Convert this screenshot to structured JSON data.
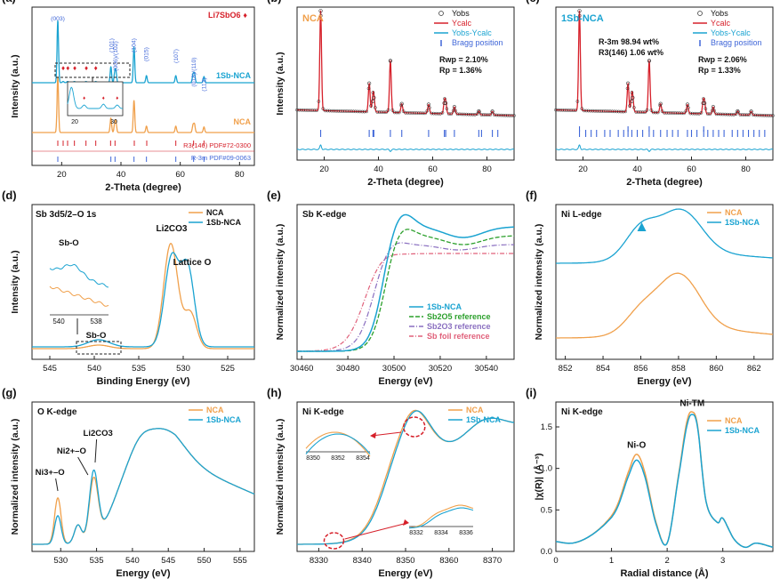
{
  "colors": {
    "nca": "#f0a04b",
    "sb": "#1aa3d1",
    "red": "#d6202a",
    "blue": "#3f66d8",
    "green": "#2ca02c",
    "purple": "#8a6fc0",
    "pink": "#e0607a",
    "gray": "#9aa3b5"
  },
  "panels": [
    {
      "id": "a",
      "letter": "(a)",
      "xlabel": "2-Theta (degree)",
      "ylabel": "Intensity (a.u.)",
      "xrange": [
        10,
        85
      ],
      "xticks": [
        20,
        40,
        60,
        80
      ],
      "legend": "Li7SbO6",
      "labels": {
        "sb_curve": "1Sb-NCA",
        "nca_curve": "NCA",
        "ref1": "R3(146) PDF#72-0300",
        "ref2": "R-3m PDF#09-0063"
      },
      "hkl": [
        "(003)",
        "(101)",
        "(006)/(102)",
        "(104)",
        "(015)",
        "(107)",
        "(018)/(110)",
        "(113)"
      ],
      "inset": {
        "xticks": [
          "20",
          "30"
        ]
      }
    },
    {
      "id": "b",
      "letter": "(b)",
      "tag": "NCA",
      "xlabel": "2-Theta (degree)",
      "ylabel": "Intensity (a.u.)",
      "xrange": [
        10,
        90
      ],
      "xticks": [
        20,
        40,
        60,
        80
      ],
      "legend": [
        "Yobs",
        "Ycalc",
        "Yobs-Ycalc",
        "Bragg position"
      ],
      "stats": [
        "Rwp = 2.10%",
        "Rp = 1.36%"
      ]
    },
    {
      "id": "c",
      "letter": "(c)",
      "tag": "1Sb-NCA",
      "xlabel": "2-Theta (degree)",
      "ylabel": "",
      "xrange": [
        10,
        90
      ],
      "xticks": [
        20,
        40,
        60,
        80
      ],
      "legend": [
        "Yobs",
        "Ycalc",
        "Yobs-Ycalc",
        "Bragg position"
      ],
      "phases": [
        "R-3m   98.94 wt%",
        "R3(146) 1.06 wt%"
      ],
      "stats": [
        "Rwp = 2.06%",
        "Rp = 1.33%"
      ]
    },
    {
      "id": "d",
      "letter": "(d)",
      "title": "Sb 3d5/2–O 1s",
      "xlabel": "Binding Energy (eV)",
      "ylabel": "Intensity (a.u.)",
      "xticks": [
        "545",
        "540",
        "535",
        "530",
        "525"
      ],
      "legend": [
        "NCA",
        "1Sb-NCA"
      ],
      "labels": [
        "Li2CO3",
        "Lattice O",
        "Sb-O",
        "Sb-O"
      ],
      "inset": {
        "xticks": [
          "540",
          "538"
        ]
      }
    },
    {
      "id": "e",
      "letter": "(e)",
      "title": "Sb K-edge",
      "xlabel": "Energy (eV)",
      "ylabel": "Normalized intensity (a.u.)",
      "xticks": [
        "30460",
        "30480",
        "30500",
        "30520",
        "30540"
      ],
      "legend": [
        "1Sb-NCA",
        "Sb2O5 reference",
        "Sb2O3 reference",
        "Sb foil reference"
      ]
    },
    {
      "id": "f",
      "letter": "(f)",
      "title": "Ni L-edge",
      "xlabel": "Energy (eV)",
      "ylabel": "Normalized intensity (a.u.)",
      "xticks": [
        "852",
        "854",
        "856",
        "858",
        "860",
        "862"
      ],
      "legend": [
        "NCA",
        "1Sb-NCA"
      ]
    },
    {
      "id": "g",
      "letter": "(g)",
      "title": "O K-edge",
      "xlabel": "Energy (eV)",
      "ylabel": "Normalized intensity (a.u.)",
      "xticks": [
        "530",
        "535",
        "540",
        "545",
        "550",
        "555"
      ],
      "legend": [
        "NCA",
        "1Sb-NCA"
      ],
      "labels": [
        "Ni3+–O",
        "Ni2+–O",
        "Li2CO3"
      ]
    },
    {
      "id": "h",
      "letter": "(h)",
      "title": "Ni K-edge",
      "xlabel": "Energy (eV)",
      "ylabel": "Normalized intensity (a.u.)",
      "xticks": [
        "8330",
        "8340",
        "8350",
        "8360",
        "8370"
      ],
      "legend": [
        "NCA",
        "1Sb-NCA"
      ],
      "inset_top": [
        "8350",
        "8352",
        "8354"
      ],
      "inset_bottom": [
        "8332",
        "8334",
        "8336"
      ]
    },
    {
      "id": "i",
      "letter": "(i)",
      "title": "Ni K-edge",
      "xlabel": "Radial distance (Å)",
      "ylabel": "|χ(R)| (Å⁻³)",
      "xrange": [
        0,
        3.9
      ],
      "yrange": [
        0,
        1.8
      ],
      "xticks": [
        0,
        1,
        2,
        3
      ],
      "yticks": [
        0,
        0.5,
        1.0,
        1.5
      ],
      "legend": [
        "NCA",
        "1Sb-NCA"
      ],
      "labels": [
        "Ni-O",
        "Ni-TM"
      ]
    }
  ],
  "chart_data": [
    {
      "panel": "a",
      "type": "line",
      "title": "",
      "xlabel": "2-Theta (degree)",
      "ylabel": "Intensity (a.u.)",
      "series": [
        {
          "name": "1Sb-NCA",
          "peaks_2theta": [
            18.7,
            36.6,
            37.9,
            38.3,
            44.4,
            48.6,
            58.5,
            64.3,
            64.8,
            68.0
          ]
        },
        {
          "name": "NCA",
          "peaks_2theta": [
            18.7,
            36.6,
            37.9,
            38.3,
            44.4,
            48.6,
            58.5,
            64.3,
            64.8,
            68.0
          ]
        }
      ]
    },
    {
      "panel": "b",
      "type": "line",
      "xlabel": "2-Theta (degree)",
      "ylabel": "Intensity (a.u.)",
      "xlim": [
        10,
        90
      ],
      "series": [
        {
          "name": "Yobs"
        },
        {
          "name": "Ycalc"
        },
        {
          "name": "Yobs-Ycalc"
        },
        {
          "name": "Bragg position"
        }
      ]
    },
    {
      "panel": "c",
      "type": "line",
      "xlabel": "2-Theta (degree)",
      "xlim": [
        10,
        90
      ],
      "series": [
        {
          "name": "Yobs"
        },
        {
          "name": "Ycalc"
        },
        {
          "name": "Yobs-Ycalc"
        },
        {
          "name": "Bragg position"
        }
      ]
    },
    {
      "panel": "d",
      "type": "line",
      "xlabel": "Binding Energy (eV)",
      "ylabel": "Intensity (a.u.)",
      "series": [
        {
          "name": "NCA",
          "x": [
            545,
            540,
            535,
            532,
            531.5,
            530.5,
            529.5,
            528,
            525
          ],
          "y": [
            0.12,
            0.14,
            0.14,
            0.6,
            0.88,
            0.45,
            0.33,
            0.15,
            0.06
          ]
        },
        {
          "name": "1Sb-NCA",
          "x": [
            545,
            540,
            535,
            532,
            531.4,
            530.5,
            529.5,
            528,
            525
          ],
          "y": [
            0.18,
            0.22,
            0.2,
            0.55,
            0.72,
            0.55,
            0.62,
            0.2,
            0.1
          ]
        }
      ]
    },
    {
      "panel": "e",
      "type": "line",
      "xlabel": "Energy (eV)",
      "ylabel": "Normalized intensity (a.u.)",
      "xlim": [
        30460,
        30550
      ],
      "series": [
        {
          "name": "1Sb-NCA"
        },
        {
          "name": "Sb2O5 reference"
        },
        {
          "name": "Sb2O3 reference"
        },
        {
          "name": "Sb foil reference"
        }
      ]
    },
    {
      "panel": "f",
      "type": "line",
      "xlabel": "Energy (eV)",
      "ylabel": "Normalized intensity (a.u.)",
      "xlim": [
        851.5,
        863
      ],
      "series": [
        {
          "name": "NCA",
          "x": [
            851.5,
            854,
            855,
            856,
            857,
            858,
            859,
            860,
            861,
            863
          ],
          "y": [
            0.05,
            0.1,
            0.18,
            0.3,
            0.32,
            0.45,
            0.3,
            0.15,
            0.1,
            0.06
          ]
        },
        {
          "name": "1Sb-NCA",
          "x": [
            851.5,
            854,
            855,
            856,
            857,
            858,
            859,
            860,
            861,
            863
          ],
          "y": [
            0.62,
            0.66,
            0.75,
            0.85,
            0.82,
            0.98,
            0.85,
            0.72,
            0.68,
            0.65
          ]
        }
      ]
    },
    {
      "panel": "g",
      "type": "line",
      "xlabel": "Energy (eV)",
      "ylabel": "Normalized intensity (a.u.)",
      "xlim": [
        526,
        557
      ],
      "series": [
        {
          "name": "NCA"
        },
        {
          "name": "1Sb-NCA"
        }
      ]
    },
    {
      "panel": "h",
      "type": "line",
      "xlabel": "Energy (eV)",
      "ylabel": "Normalized intensity (a.u.)",
      "xlim": [
        8325,
        8375
      ],
      "series": [
        {
          "name": "NCA"
        },
        {
          "name": "1Sb-NCA"
        }
      ]
    },
    {
      "panel": "i",
      "type": "line",
      "xlabel": "Radial distance (Å)",
      "ylabel": "|χ(R)| (Å⁻³)",
      "xlim": [
        0,
        3.9
      ],
      "ylim": [
        0,
        1.8
      ],
      "series": [
        {
          "name": "NCA",
          "x": [
            0,
            0.3,
            0.6,
            0.9,
            1.1,
            1.3,
            1.45,
            1.6,
            1.8,
            2.0,
            2.2,
            2.35,
            2.45,
            2.55,
            2.7,
            2.9,
            3.0,
            3.2,
            3.4,
            3.6,
            3.9
          ],
          "y": [
            0.12,
            0.1,
            0.18,
            0.35,
            0.55,
            0.95,
            1.17,
            0.95,
            0.35,
            0.1,
            0.9,
            1.55,
            1.68,
            1.5,
            0.6,
            0.35,
            0.4,
            0.15,
            0.05,
            0.1,
            0.05
          ]
        },
        {
          "name": "1Sb-NCA",
          "x": [
            0,
            0.3,
            0.6,
            0.9,
            1.1,
            1.3,
            1.45,
            1.6,
            1.8,
            2.0,
            2.2,
            2.35,
            2.45,
            2.55,
            2.7,
            2.9,
            3.0,
            3.2,
            3.4,
            3.6,
            3.9
          ],
          "y": [
            0.12,
            0.1,
            0.18,
            0.34,
            0.52,
            0.9,
            1.1,
            0.9,
            0.33,
            0.1,
            0.88,
            1.5,
            1.65,
            1.48,
            0.6,
            0.35,
            0.4,
            0.15,
            0.05,
            0.1,
            0.05
          ]
        }
      ]
    }
  ]
}
